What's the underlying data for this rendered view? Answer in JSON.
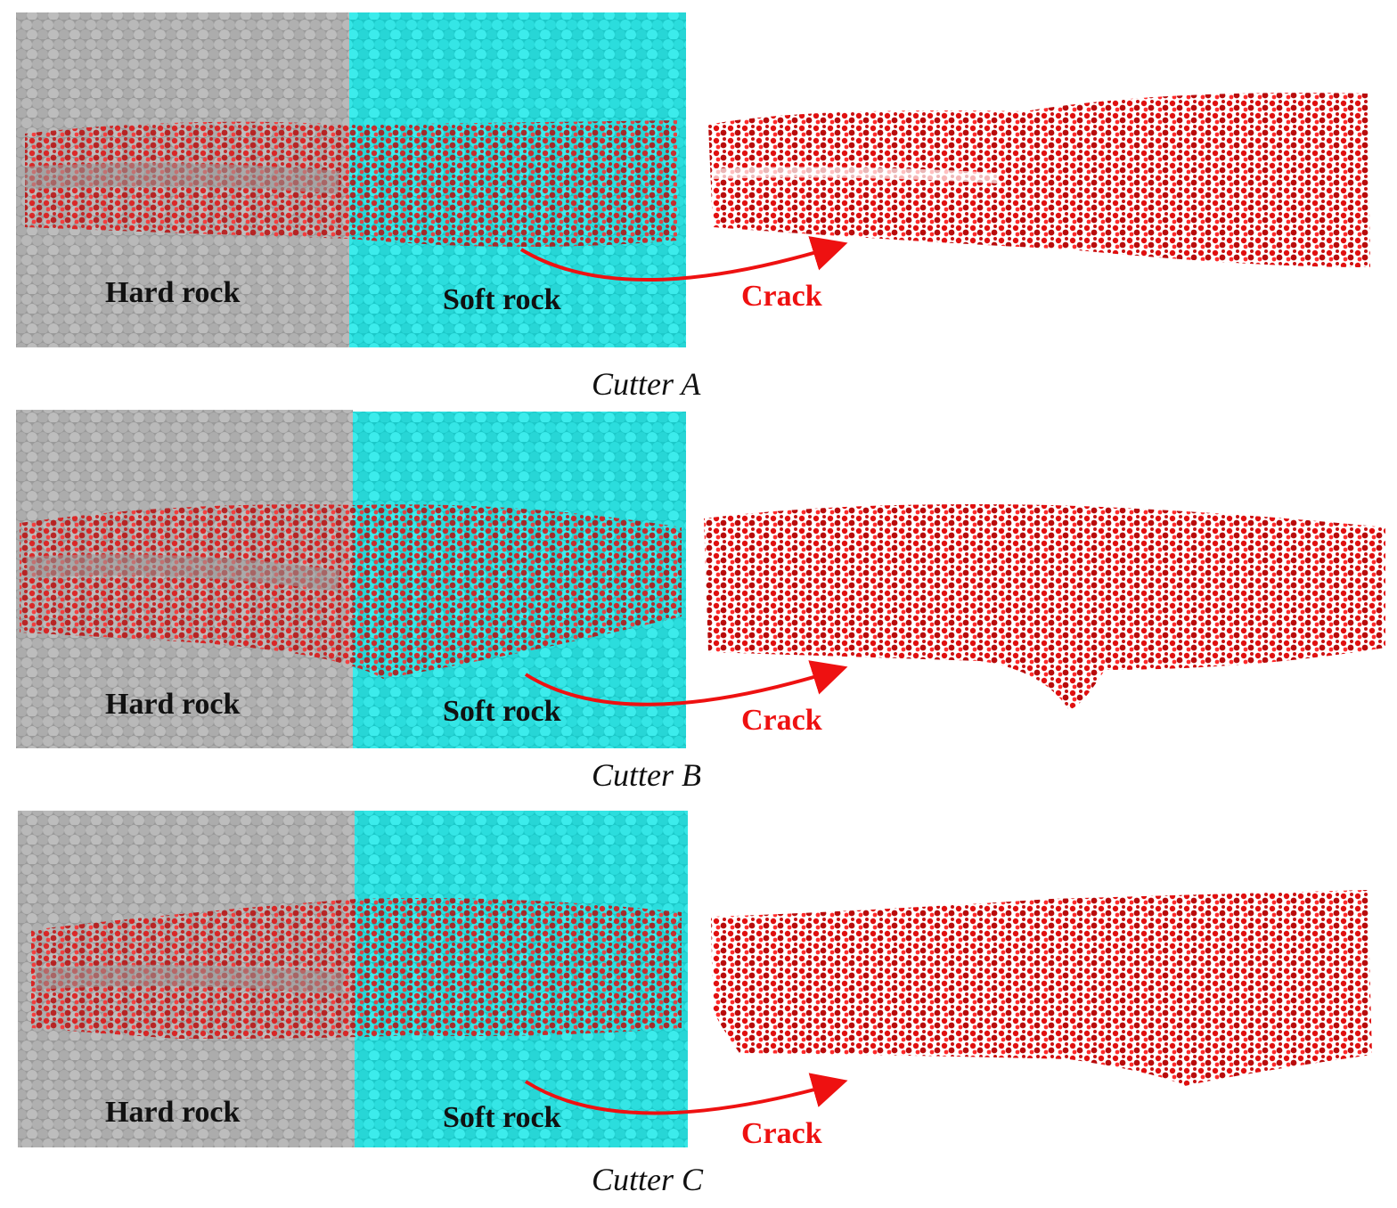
{
  "colors": {
    "hard_rock": "#a6a6a6",
    "soft_rock": "#22dede",
    "crack": "#e01010",
    "arrow": "#ee1111"
  },
  "panels": [
    {
      "region_labels": {
        "hard": "Hard rock",
        "soft": "Soft rock",
        "crack": "Crack"
      },
      "caption": "Cutter A"
    },
    {
      "region_labels": {
        "hard": "Hard rock",
        "soft": "Soft rock",
        "crack": "Crack"
      },
      "caption": "Cutter B"
    },
    {
      "region_labels": {
        "hard": "Hard rock",
        "soft": "Soft rock",
        "crack": "Crack"
      },
      "caption": "Cutter C"
    }
  ]
}
